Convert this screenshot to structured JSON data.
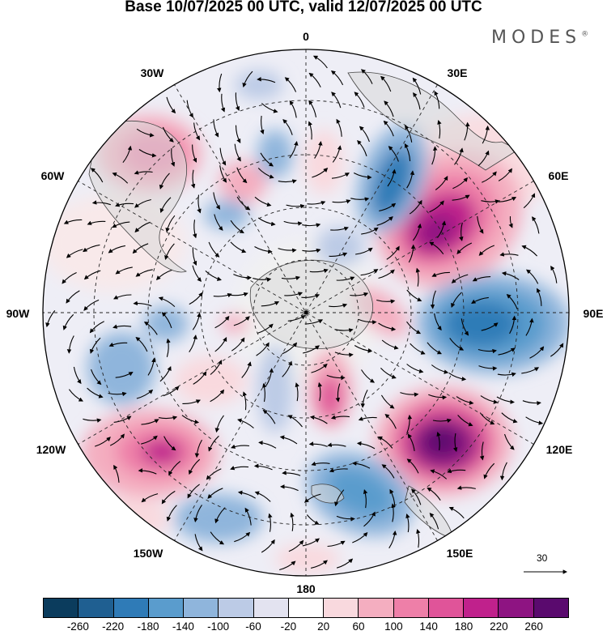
{
  "title": "Base 10/07/2025 00 UTC, valid 12/07/2025 00 UTC",
  "brand": {
    "name": "MODES",
    "mark": "®"
  },
  "map": {
    "projection": "south-polar-stereographic",
    "lon_labels": [
      "0",
      "30E",
      "60E",
      "90E",
      "120E",
      "150E",
      "180",
      "150W",
      "120W",
      "90W",
      "60W",
      "30W"
    ],
    "reference_vector": {
      "value": "30"
    }
  },
  "colorbar": {
    "colors": [
      "#0b3c5d",
      "#1f5f91",
      "#2f7bb7",
      "#5a9ccd",
      "#8fb5dc",
      "#bccbe6",
      "#e3e3f0",
      "#ffffff",
      "#f9d9de",
      "#f4aec0",
      "#ee7fa8",
      "#e05499",
      "#c0218c",
      "#8e1482",
      "#5a0a6e"
    ],
    "ticks": [
      "-260",
      "-220",
      "-180",
      "-140",
      "-100",
      "-60",
      "-20",
      "20",
      "60",
      "100",
      "140",
      "180",
      "220",
      "260"
    ]
  }
}
